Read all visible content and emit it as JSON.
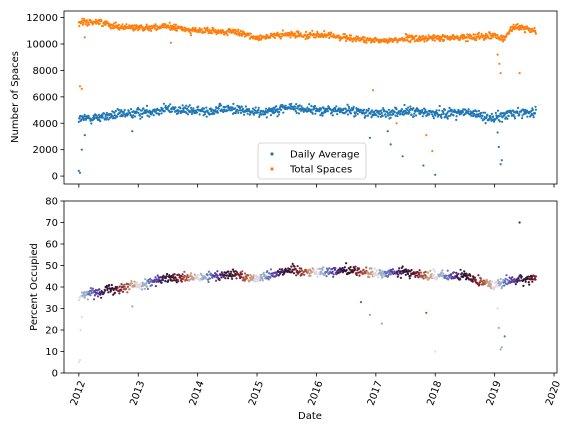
{
  "chart_data": [
    {
      "type": "scatter",
      "title": "",
      "xlabel": "",
      "ylabel": "Number of Spaces",
      "xlim": [
        2011.75,
        2020.05
      ],
      "ylim": [
        -600,
        12500
      ],
      "yticks": [
        0,
        2000,
        4000,
        6000,
        8000,
        10000,
        12000
      ],
      "grid": false,
      "legend": "lower-center",
      "series": [
        {
          "name": "Daily Average",
          "color": "#1f77b4",
          "trend": [
            [
              2012.0,
              4300
            ],
            [
              2012.5,
              4550
            ],
            [
              2013.0,
              4800
            ],
            [
              2013.5,
              5100
            ],
            [
              2014.0,
              4900
            ],
            [
              2014.6,
              5100
            ],
            [
              2015.0,
              4800
            ],
            [
              2015.5,
              5200
            ],
            [
              2016.0,
              5000
            ],
            [
              2016.6,
              4950
            ],
            [
              2017.0,
              4700
            ],
            [
              2017.5,
              4900
            ],
            [
              2018.0,
              4750
            ],
            [
              2018.5,
              4850
            ],
            [
              2019.0,
              4350
            ],
            [
              2019.3,
              4800
            ],
            [
              2019.7,
              4850
            ]
          ],
          "outliers": [
            [
              2012.0,
              400
            ],
            [
              2012.02,
              250
            ],
            [
              2012.05,
              2000
            ],
            [
              2012.1,
              3100
            ],
            [
              2012.9,
              3400
            ],
            [
              2016.9,
              2900
            ],
            [
              2017.2,
              3400
            ],
            [
              2017.25,
              2400
            ],
            [
              2017.45,
              1500
            ],
            [
              2017.8,
              800
            ],
            [
              2018.0,
              100
            ],
            [
              2019.05,
              3300
            ],
            [
              2019.07,
              2200
            ],
            [
              2019.1,
              900
            ],
            [
              2019.12,
              1200
            ]
          ]
        },
        {
          "name": "Total Spaces",
          "color": "#ff7f0e",
          "trend": [
            [
              2012.0,
              11600
            ],
            [
              2012.3,
              11700
            ],
            [
              2012.7,
              11300
            ],
            [
              2013.0,
              11250
            ],
            [
              2013.5,
              11300
            ],
            [
              2014.0,
              11000
            ],
            [
              2014.6,
              10900
            ],
            [
              2015.0,
              10500
            ],
            [
              2015.5,
              10700
            ],
            [
              2016.0,
              10700
            ],
            [
              2016.5,
              10500
            ],
            [
              2017.0,
              10200
            ],
            [
              2017.5,
              10400
            ],
            [
              2018.0,
              10450
            ],
            [
              2018.5,
              10500
            ],
            [
              2019.0,
              10700
            ],
            [
              2019.15,
              10300
            ],
            [
              2019.3,
              11300
            ],
            [
              2019.7,
              11000
            ]
          ],
          "outliers": [
            [
              2012.02,
              6800
            ],
            [
              2012.05,
              6600
            ],
            [
              2012.1,
              10500
            ],
            [
              2013.55,
              10100
            ],
            [
              2016.95,
              6500
            ],
            [
              2017.35,
              4000
            ],
            [
              2017.85,
              3100
            ],
            [
              2017.95,
              1900
            ],
            [
              2019.05,
              9200
            ],
            [
              2019.08,
              8500
            ],
            [
              2019.1,
              7800
            ],
            [
              2019.42,
              7800
            ]
          ]
        }
      ]
    },
    {
      "type": "scatter",
      "title": "",
      "xlabel": "Date",
      "ylabel": "Percent Occupied",
      "xlim": [
        2011.75,
        2020.05
      ],
      "ylim": [
        0,
        80
      ],
      "yticks": [
        0,
        10,
        20,
        30,
        40,
        50,
        60,
        70,
        80
      ],
      "xticks": [
        "2012",
        "2013",
        "2014",
        "2015",
        "2016",
        "2017",
        "2018",
        "2019",
        "2020"
      ],
      "grid": false,
      "colormap": "twilight (day of year)",
      "palette": [
        "#e2d9e2",
        "#9aadc6",
        "#5e6fbb",
        "#5a3ca0",
        "#421d59",
        "#2f1436",
        "#4a1428",
        "#7a2133",
        "#a9513c",
        "#c89c85",
        "#dcd6dc"
      ],
      "series": [
        {
          "name": "",
          "trend": [
            [
              2012.0,
              36
            ],
            [
              2012.5,
              39
            ],
            [
              2013.0,
              41
            ],
            [
              2013.5,
              44
            ],
            [
              2014.0,
              44
            ],
            [
              2014.6,
              46
            ],
            [
              2015.0,
              44
            ],
            [
              2015.5,
              48
            ],
            [
              2016.0,
              47
            ],
            [
              2016.6,
              48
            ],
            [
              2017.0,
              46
            ],
            [
              2017.5,
              47
            ],
            [
              2018.0,
              45
            ],
            [
              2018.5,
              45
            ],
            [
              2019.0,
              41
            ],
            [
              2019.3,
              43
            ],
            [
              2019.7,
              44
            ]
          ],
          "outliers": [
            [
              2012.0,
              5
            ],
            [
              2012.02,
              6
            ],
            [
              2012.03,
              20
            ],
            [
              2012.05,
              26
            ],
            [
              2012.9,
              31
            ],
            [
              2016.75,
              33
            ],
            [
              2016.9,
              27
            ],
            [
              2017.1,
              23
            ],
            [
              2017.85,
              28
            ],
            [
              2018.0,
              10
            ],
            [
              2019.05,
              30
            ],
            [
              2019.07,
              21
            ],
            [
              2019.1,
              11
            ],
            [
              2019.12,
              12
            ],
            [
              2019.17,
              17
            ],
            [
              2019.42,
              70
            ]
          ]
        }
      ]
    }
  ]
}
